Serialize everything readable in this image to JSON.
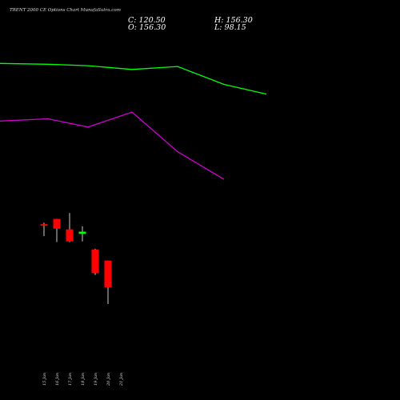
{
  "header": {
    "title": "TRENT 2000  CE Options  Chart MunafaSutra.com",
    "close": "C: 120.50",
    "open": "O: 156.30",
    "high": "H: 156.30",
    "low": "L: 98.15"
  },
  "chart_data": {
    "type": "candlestick",
    "categories": [
      "15 Jan",
      "16 Jan",
      "17 Jan",
      "18 Jan",
      "19 Jan",
      "20 Jan",
      "21 Jan"
    ],
    "candles": [
      {
        "date": "15 Jan",
        "open": 205,
        "close": 205,
        "high": 207,
        "low": 189,
        "color": "#ff0000"
      },
      {
        "date": "16 Jan",
        "open": 212,
        "close": 199,
        "high": 212,
        "low": 181,
        "color": "#ff0000"
      },
      {
        "date": "17 Jan",
        "open": 198,
        "close": 182,
        "high": 220,
        "low": 181,
        "color": "#ff0000"
      },
      {
        "date": "18 Jan",
        "open": 192,
        "close": 195,
        "high": 202,
        "low": 182,
        "color": "#00ff00"
      },
      {
        "date": "19 Jan",
        "open": 171,
        "close": 140,
        "high": 172,
        "low": 137,
        "color": "#ff0000"
      },
      {
        "date": "20 Jan",
        "open": 156.3,
        "close": 120.5,
        "high": 156.3,
        "low": 98.15,
        "color": "#ff0000"
      }
    ],
    "series": [
      {
        "color": "#00ff00",
        "values": [
          {
            "date": "15 Jan",
            "value": 420
          },
          {
            "date": "16 Jan",
            "value": 419
          },
          {
            "date": "17 Jan",
            "value": 417
          },
          {
            "date": "18 Jan",
            "value": 412
          },
          {
            "date": "19 Jan",
            "value": 416
          },
          {
            "date": "20 Jan",
            "value": 392
          },
          {
            "date": "21 Jan",
            "value": 379
          }
        ]
      },
      {
        "color": "#cc00cc",
        "values": [
          {
            "date": "15 Jan",
            "value": 343
          },
          {
            "date": "16 Jan",
            "value": 346
          },
          {
            "date": "17 Jan",
            "value": 335
          },
          {
            "date": "18 Jan",
            "value": 355
          },
          {
            "date": "19 Jan",
            "value": 302
          },
          {
            "date": "20 Jan",
            "value": 265
          }
        ]
      }
    ]
  }
}
